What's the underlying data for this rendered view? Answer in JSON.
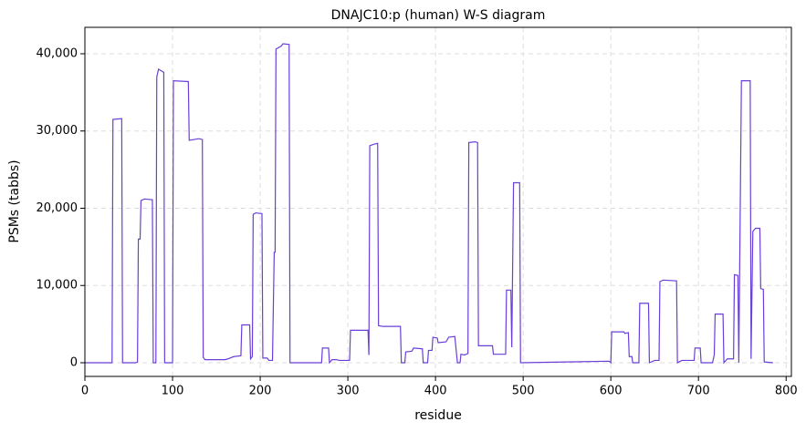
{
  "chart_data": {
    "type": "line",
    "title": "DNAJC10:p (human) W-S diagram",
    "x_label": "residue",
    "y_label": "PSMs (tabbs)",
    "color": "#6a3fd8",
    "grid": true,
    "xlim": [
      0,
      806
    ],
    "ylim": [
      -1770,
      43420
    ],
    "xticks": [
      0,
      100,
      200,
      300,
      400,
      500,
      600,
      700,
      800
    ],
    "yticks": [
      0,
      {
        "value": 10000,
        "label": "10,000"
      },
      {
        "value": 20000,
        "label": "20,000"
      },
      {
        "value": 30000,
        "label": "30,000"
      },
      {
        "value": 40000,
        "label": "40,000"
      }
    ],
    "x": [
      0,
      31,
      32,
      42,
      43,
      58,
      60,
      61,
      63,
      64,
      68,
      77,
      78,
      81,
      82,
      84,
      87,
      90,
      91,
      100,
      101,
      118,
      119,
      130,
      134,
      135,
      137,
      160,
      163,
      170,
      178,
      179,
      188,
      189,
      191,
      192,
      195,
      202,
      203,
      208,
      210,
      214,
      216,
      217,
      218,
      224,
      226,
      233,
      234,
      270,
      271,
      278,
      279,
      282,
      287,
      290,
      302,
      303,
      323,
      324,
      325,
      330,
      334,
      335,
      340,
      360,
      361,
      365,
      366,
      373,
      375,
      385,
      386,
      391,
      392,
      396,
      397,
      402,
      403,
      412,
      415,
      422,
      425,
      428,
      429,
      433,
      437,
      438,
      445,
      448,
      449,
      465,
      466,
      480,
      481,
      486,
      487,
      489,
      496,
      497,
      598,
      600,
      601,
      615,
      616,
      620,
      621,
      624,
      625,
      632,
      633,
      643,
      644,
      650,
      655,
      656,
      660,
      675,
      676,
      681,
      695,
      696,
      702,
      703,
      716,
      718,
      719,
      728,
      729,
      733,
      740,
      741,
      745,
      746,
      749,
      759,
      760,
      762,
      765,
      770,
      771,
      774,
      775,
      785
    ],
    "values": [
      0,
      0,
      31500,
      31600,
      0,
      0,
      100,
      16000,
      16000,
      21000,
      21200,
      21100,
      0,
      0,
      37000,
      38000,
      37800,
      37600,
      0,
      0,
      36500,
      36400,
      28800,
      29000,
      28900,
      700,
      400,
      400,
      500,
      800,
      900,
      4900,
      4900,
      500,
      800,
      19200,
      19400,
      19300,
      600,
      600,
      300,
      300,
      14300,
      14300,
      40600,
      41000,
      41300,
      41200,
      0,
      0,
      1900,
      1900,
      0,
      400,
      400,
      300,
      300,
      4200,
      4200,
      1000,
      28100,
      28300,
      28400,
      4800,
      4700,
      4700,
      0,
      0,
      1400,
      1500,
      1900,
      1800,
      0,
      0,
      1600,
      1600,
      3300,
      3200,
      2600,
      2700,
      3300,
      3400,
      0,
      0,
      1100,
      1000,
      1200,
      28500,
      28600,
      28500,
      2200,
      2200,
      1100,
      1100,
      9400,
      9400,
      2000,
      23300,
      23300,
      0,
      200,
      0,
      4000,
      4000,
      3800,
      3900,
      800,
      800,
      0,
      0,
      7700,
      7700,
      0,
      300,
      300,
      10500,
      10700,
      10600,
      0,
      300,
      300,
      1900,
      1900,
      0,
      0,
      1000,
      6300,
      6300,
      0,
      500,
      500,
      11400,
      11300,
      0,
      36500,
      36500,
      500,
      17000,
      17400,
      17400,
      9600,
      9500,
      100,
      0
    ]
  }
}
